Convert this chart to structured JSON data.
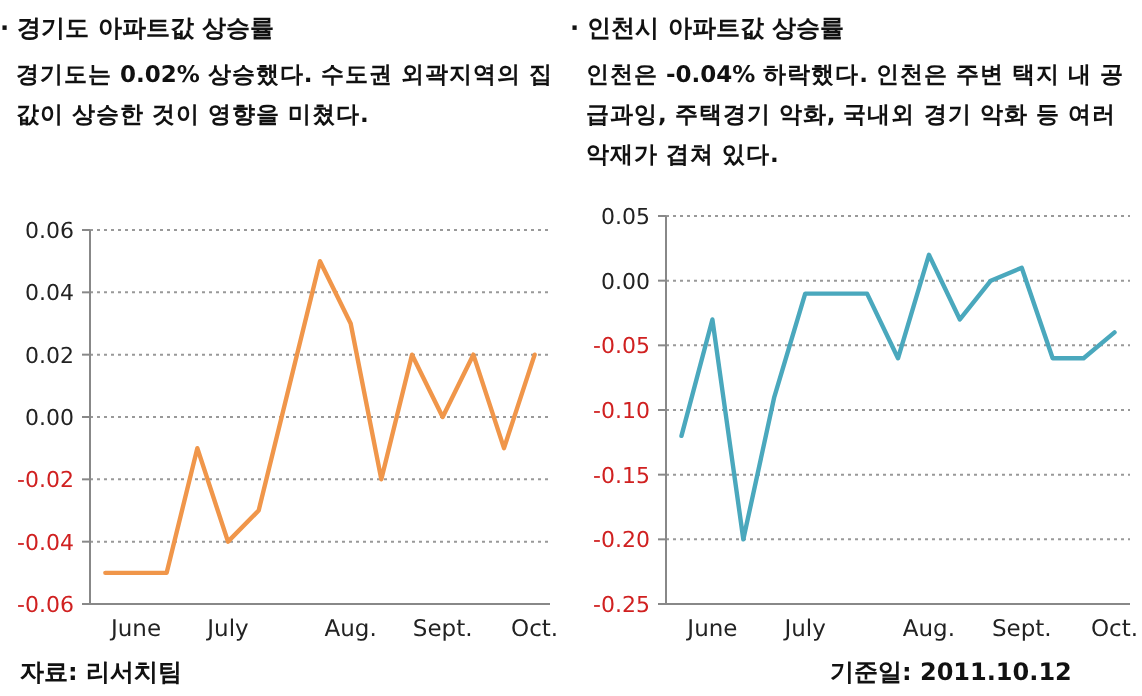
{
  "chart_data": [
    {
      "type": "line",
      "title": "· 경기도 아파트값 상승률",
      "subtitle": "경기도는 0.02% 상승했다. 수도권 외곽지역의 집값이 상승한 것이  영향을 미쳤다.",
      "categories": [
        null,
        "June",
        null,
        null,
        "July",
        null,
        null,
        null,
        "Aug.",
        null,
        null,
        "Sept.",
        null,
        null,
        "Oct."
      ],
      "series": [
        {
          "color": "#f0964a",
          "values": [
            -0.05,
            -0.05,
            -0.05,
            -0.01,
            -0.04,
            -0.03,
            0.01,
            0.05,
            0.03,
            -0.02,
            0.02,
            0.0,
            0.02,
            -0.01,
            0.02
          ]
        }
      ],
      "ylim": [
        -0.06,
        0.06
      ],
      "yticks": [
        {
          "value": -0.06,
          "label": "-0.06"
        },
        {
          "value": -0.04,
          "label": "-0.04"
        },
        {
          "value": -0.02,
          "label": "-0.02"
        },
        {
          "value": 0,
          "label": "0.00"
        },
        {
          "value": 0.02,
          "label": "0.02"
        },
        {
          "value": 0.04,
          "label": "0.04"
        },
        {
          "value": 0.06,
          "label": "0.06"
        }
      ],
      "grid": "y",
      "marker": "none",
      "line_style": "solid",
      "annotations": [
        "자료: 리서치팀"
      ]
    },
    {
      "type": "line",
      "title": "· 인천시 아파트값 상승률",
      "subtitle": "인천은 -0.04% 하락했다.  인천은 주변 택지 내 공급과잉, 주택경기 악화, 국내외 경기 악화 등 여러 악재가 겹쳐 있다.",
      "categories": [
        null,
        "June",
        null,
        null,
        "July",
        null,
        null,
        null,
        "Aug.",
        null,
        null,
        "Sept.",
        null,
        null,
        "Oct."
      ],
      "series": [
        {
          "color": "#4aa8bd",
          "values": [
            -0.12,
            -0.03,
            -0.2,
            -0.09,
            -0.01,
            -0.01,
            -0.01,
            -0.06,
            0.02,
            -0.03,
            0.0,
            0.01,
            -0.06,
            -0.06,
            -0.04
          ]
        }
      ],
      "ylim": [
        -0.25,
        0.05
      ],
      "yticks": [
        {
          "value": -0.25,
          "label": "-0.25"
        },
        {
          "value": -0.2,
          "label": "-0.20"
        },
        {
          "value": -0.15,
          "label": "-0.15"
        },
        {
          "value": -0.1,
          "label": "-0.10"
        },
        {
          "value": -0.05,
          "label": "-0.05"
        },
        {
          "value": 0,
          "label": "0.00"
        },
        {
          "value": 0.05,
          "label": "0.05"
        }
      ],
      "grid": "y",
      "marker": "none",
      "line_style": "solid",
      "annotations": [
        "기준일: 2011.10.12"
      ]
    }
  ]
}
